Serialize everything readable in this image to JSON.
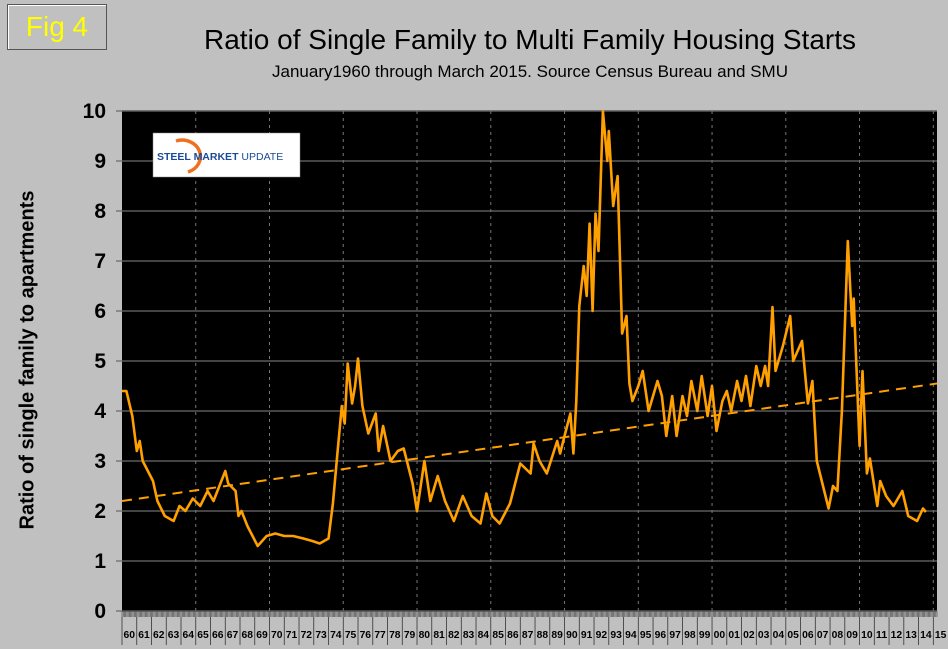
{
  "figure_label": "Fig 4",
  "logo": {
    "text_bold": "STEEL MARKET",
    "text_light": "UPDATE"
  },
  "colors": {
    "series": "#ffa000",
    "plot_background": "#000000",
    "page_background": "#c0c0c0",
    "fig_label": "#ffff00"
  },
  "chart_data": {
    "type": "line",
    "title": "Ratio of Single Family to Multi Family Housing Starts",
    "subtitle": "January1960 through March 2015. Source Census Bureau and SMU",
    "ylabel": "Ratio of single family to apartments",
    "xlabel": "",
    "ylim": [
      0,
      10
    ],
    "xlim": [
      1960,
      2015.25
    ],
    "yticks": [
      "0",
      "1",
      "2",
      "3",
      "4",
      "5",
      "6",
      "7",
      "8",
      "9",
      "10"
    ],
    "xticks": [
      "60",
      "61",
      "62",
      "63",
      "64",
      "65",
      "66",
      "67",
      "68",
      "69",
      "70",
      "71",
      "72",
      "73",
      "74",
      "75",
      "76",
      "77",
      "78",
      "79",
      "80",
      "81",
      "82",
      "83",
      "84",
      "85",
      "86",
      "87",
      "88",
      "89",
      "90",
      "91",
      "92",
      "93",
      "94",
      "95",
      "96",
      "97",
      "98",
      "99",
      "00",
      "01",
      "02",
      "03",
      "04",
      "05",
      "06",
      "07",
      "08",
      "09",
      "10",
      "11",
      "12",
      "13",
      "14",
      "15"
    ],
    "grid": {
      "horizontal": true,
      "vertical_dashed_every_years": 5
    },
    "series": [
      {
        "values": [
          [
            1960.0,
            4.4
          ],
          [
            1960.3,
            4.4
          ],
          [
            1960.7,
            3.9
          ],
          [
            1961.0,
            3.2
          ],
          [
            1961.2,
            3.4
          ],
          [
            1961.4,
            3.0
          ],
          [
            1962.1,
            2.6
          ],
          [
            1962.4,
            2.2
          ],
          [
            1962.9,
            1.9
          ],
          [
            1963.5,
            1.8
          ],
          [
            1963.9,
            2.1
          ],
          [
            1964.3,
            2.0
          ],
          [
            1964.8,
            2.25
          ],
          [
            1965.3,
            2.1
          ],
          [
            1965.8,
            2.4
          ],
          [
            1966.2,
            2.2
          ],
          [
            1966.6,
            2.5
          ],
          [
            1967.0,
            2.8
          ],
          [
            1967.2,
            2.55
          ],
          [
            1967.7,
            2.4
          ],
          [
            1967.9,
            1.9
          ],
          [
            1968.1,
            2.0
          ],
          [
            1968.5,
            1.7
          ],
          [
            1969.2,
            1.3
          ],
          [
            1969.8,
            1.5
          ],
          [
            1970.4,
            1.55
          ],
          [
            1971.0,
            1.5
          ],
          [
            1971.6,
            1.5
          ],
          [
            1972.3,
            1.45
          ],
          [
            1972.9,
            1.4
          ],
          [
            1973.4,
            1.35
          ],
          [
            1974.0,
            1.45
          ],
          [
            1974.3,
            2.15
          ],
          [
            1974.6,
            3.15
          ],
          [
            1974.9,
            4.1
          ],
          [
            1975.1,
            3.75
          ],
          [
            1975.3,
            4.95
          ],
          [
            1975.6,
            4.15
          ],
          [
            1975.8,
            4.5
          ],
          [
            1976.0,
            5.05
          ],
          [
            1976.3,
            4.1
          ],
          [
            1976.7,
            3.55
          ],
          [
            1977.2,
            3.95
          ],
          [
            1977.4,
            3.2
          ],
          [
            1977.7,
            3.7
          ],
          [
            1978.2,
            3.0
          ],
          [
            1978.7,
            3.2
          ],
          [
            1979.1,
            3.25
          ],
          [
            1979.7,
            2.55
          ],
          [
            1980.0,
            2.0
          ],
          [
            1980.5,
            3.0
          ],
          [
            1980.9,
            2.2
          ],
          [
            1981.4,
            2.7
          ],
          [
            1981.9,
            2.2
          ],
          [
            1982.5,
            1.8
          ],
          [
            1983.1,
            2.3
          ],
          [
            1983.7,
            1.9
          ],
          [
            1984.3,
            1.75
          ],
          [
            1984.7,
            2.35
          ],
          [
            1985.1,
            1.9
          ],
          [
            1985.6,
            1.75
          ],
          [
            1986.3,
            2.15
          ],
          [
            1987.0,
            2.95
          ],
          [
            1987.7,
            2.75
          ],
          [
            1987.9,
            3.35
          ],
          [
            1988.3,
            3.0
          ],
          [
            1988.8,
            2.75
          ],
          [
            1989.5,
            3.4
          ],
          [
            1989.7,
            3.15
          ],
          [
            1990.0,
            3.5
          ],
          [
            1990.4,
            3.95
          ],
          [
            1990.6,
            3.15
          ],
          [
            1990.8,
            4.2
          ],
          [
            1991.0,
            6.1
          ],
          [
            1991.3,
            6.9
          ],
          [
            1991.5,
            6.3
          ],
          [
            1991.7,
            7.75
          ],
          [
            1991.9,
            6.0
          ],
          [
            1992.1,
            7.95
          ],
          [
            1992.3,
            7.2
          ],
          [
            1992.6,
            10.0
          ],
          [
            1992.9,
            9.0
          ],
          [
            1993.0,
            9.6
          ],
          [
            1993.3,
            8.1
          ],
          [
            1993.6,
            8.7
          ],
          [
            1993.9,
            5.55
          ],
          [
            1994.2,
            5.9
          ],
          [
            1994.4,
            4.55
          ],
          [
            1994.6,
            4.2
          ],
          [
            1995.0,
            4.5
          ],
          [
            1995.3,
            4.8
          ],
          [
            1995.7,
            4.0
          ],
          [
            1996.3,
            4.6
          ],
          [
            1996.6,
            4.3
          ],
          [
            1996.9,
            3.5
          ],
          [
            1997.3,
            4.3
          ],
          [
            1997.6,
            3.5
          ],
          [
            1998.0,
            4.3
          ],
          [
            1998.3,
            3.9
          ],
          [
            1998.6,
            4.6
          ],
          [
            1999.0,
            4.0
          ],
          [
            1999.3,
            4.7
          ],
          [
            1999.7,
            3.9
          ],
          [
            2000.0,
            4.5
          ],
          [
            2000.3,
            3.6
          ],
          [
            2000.7,
            4.2
          ],
          [
            2001.0,
            4.4
          ],
          [
            2001.3,
            4.0
          ],
          [
            2001.7,
            4.6
          ],
          [
            2002.0,
            4.2
          ],
          [
            2002.3,
            4.7
          ],
          [
            2002.6,
            4.1
          ],
          [
            2003.0,
            4.9
          ],
          [
            2003.3,
            4.5
          ],
          [
            2003.6,
            4.9
          ],
          [
            2003.8,
            4.5
          ],
          [
            2004.1,
            6.08
          ],
          [
            2004.3,
            4.8
          ],
          [
            2004.8,
            5.3
          ],
          [
            2005.3,
            5.9
          ],
          [
            2005.5,
            5.0
          ],
          [
            2006.1,
            5.4
          ],
          [
            2006.5,
            4.15
          ],
          [
            2006.8,
            4.6
          ],
          [
            2007.1,
            3.0
          ],
          [
            2007.9,
            2.05
          ],
          [
            2008.2,
            2.5
          ],
          [
            2008.5,
            2.4
          ],
          [
            2008.8,
            4.0
          ],
          [
            2009.2,
            7.4
          ],
          [
            2009.5,
            5.7
          ],
          [
            2009.6,
            6.25
          ],
          [
            2010.0,
            3.3
          ],
          [
            2010.2,
            4.8
          ],
          [
            2010.5,
            2.75
          ],
          [
            2010.7,
            3.05
          ],
          [
            2011.2,
            2.1
          ],
          [
            2011.4,
            2.6
          ],
          [
            2011.8,
            2.3
          ],
          [
            2012.3,
            2.1
          ],
          [
            2012.9,
            2.4
          ],
          [
            2013.3,
            1.9
          ],
          [
            2013.9,
            1.8
          ],
          [
            2014.3,
            2.05
          ],
          [
            2014.5,
            1.98
          ]
        ]
      },
      {
        "type": "linear-trend",
        "style": "dashed",
        "values": [
          [
            1960.0,
            2.2
          ],
          [
            2015.25,
            4.55
          ]
        ]
      }
    ]
  }
}
